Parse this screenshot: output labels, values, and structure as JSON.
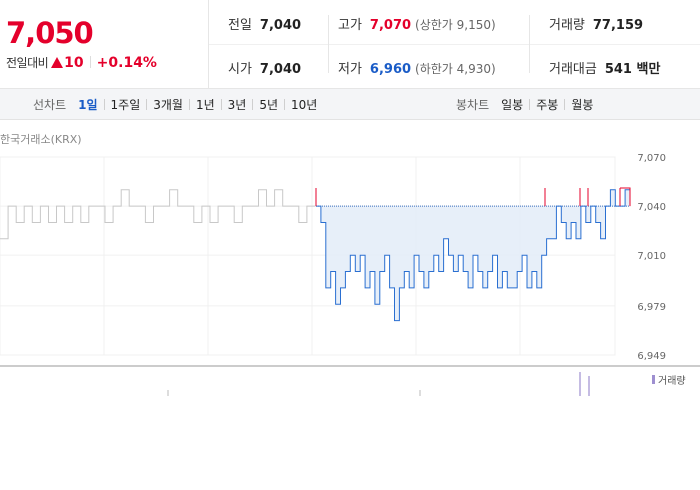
{
  "quote": {
    "price": "7,050",
    "change_label": "전일대비",
    "change_value": "10",
    "change_pct": "+0.14%",
    "stats": {
      "prev_close": {
        "label": "전일",
        "value": "7,040"
      },
      "open": {
        "label": "시가",
        "value": "7,040"
      },
      "high": {
        "label": "고가",
        "value": "7,070",
        "sub": "(상한가 9,150)"
      },
      "low": {
        "label": "저가",
        "value": "6,960",
        "sub": "(하한가 4,930)"
      },
      "volume": {
        "label": "거래량",
        "value": "77,159"
      },
      "amount": {
        "label": "거래대금",
        "value": "541 백만"
      }
    }
  },
  "tabs": {
    "line_label": "선차트",
    "line": [
      "1일",
      "1주일",
      "3개월",
      "1년",
      "3년",
      "5년",
      "10년"
    ],
    "active": "1일",
    "candle_label": "봉차트",
    "candle": [
      "일봉",
      "주봉",
      "월봉"
    ]
  },
  "chart": {
    "source": "한국거래소(KRX)",
    "y_ticks": [
      "7,070",
      "7,040",
      "7,010",
      "6,979",
      "6,949"
    ],
    "volume_label": "거래량",
    "colors": {
      "up": "#e4002b",
      "down": "#2a6fd1",
      "prev": "#c8c8c8",
      "fill": "#e3ecf8",
      "volume": "#9e8fd0"
    }
  },
  "chart_data": {
    "type": "line",
    "ylim": [
      6949,
      7070
    ],
    "baseline": 7040,
    "prev_day_series": [
      7020,
      7040,
      7030,
      7040,
      7030,
      7040,
      7030,
      7040,
      7030,
      7040,
      7030,
      7040,
      7040,
      7030,
      7040,
      7050,
      7040,
      7040,
      7030,
      7040,
      7040,
      7050,
      7040,
      7040,
      7030,
      7040,
      7030,
      7040,
      7040,
      7030,
      7040,
      7040,
      7050,
      7040,
      7050,
      7040,
      7040,
      7030,
      7040,
      7040
    ],
    "today_series": [
      7040,
      7030,
      6990,
      7000,
      6980,
      6990,
      7000,
      7010,
      7000,
      7010,
      6990,
      7000,
      6980,
      7000,
      7010,
      6990,
      6970,
      6990,
      7000,
      6990,
      7010,
      7000,
      6990,
      7000,
      7010,
      7000,
      7020,
      7010,
      7000,
      7010,
      7000,
      6990,
      7010,
      7000,
      6990,
      7000,
      7010,
      6990,
      7000,
      6990,
      6990,
      7000,
      7010,
      6990,
      7000,
      6990,
      7010,
      7020,
      7020,
      7040,
      7030,
      7020,
      7030,
      7020,
      7040,
      7030,
      7040,
      7030,
      7020,
      7040,
      7050,
      7040,
      7040,
      7050,
      7050
    ]
  }
}
